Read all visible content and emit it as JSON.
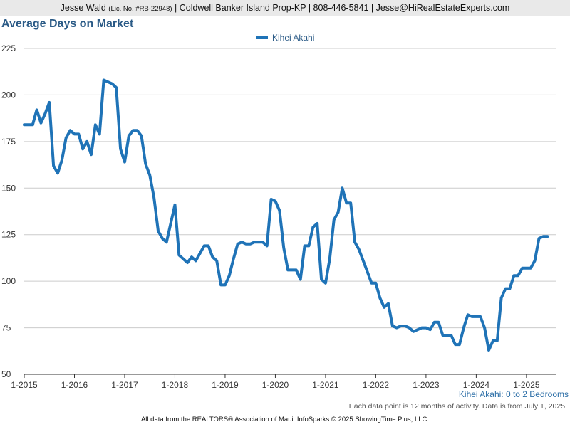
{
  "header": {
    "agent_name": "Jesse Wald",
    "license": "(Lic. No. #RB-22948)",
    "rest": "| Coldwell Banker Island Prop-KP | 808-446-5841 | Jesse@HiRealEstateExperts.com"
  },
  "notes": {
    "subtitle": "Kihei Akahi: 0 to 2 Bedrooms",
    "activity": "Each data point is 12 months of activity. Data is from July 1, 2025.",
    "footer": "All data from the REALTORS® Association of Maui. InfoSparks © 2025 ShowingTime Plus, LLC."
  },
  "colors": {
    "line": "#1f73b7",
    "grid": "#cccccc",
    "axis": "#333333",
    "title": "#2a5a86"
  },
  "chart_data": {
    "type": "line",
    "title": "Average Days on Market",
    "xlabel": "",
    "ylabel": "",
    "ylim": [
      50,
      225
    ],
    "yticks": [
      50,
      75,
      100,
      125,
      150,
      175,
      200,
      225
    ],
    "xlim": [
      2015.0,
      2025.5833
    ],
    "xticks": [
      {
        "label": "1-2015",
        "value": 2015
      },
      {
        "label": "1-2016",
        "value": 2016
      },
      {
        "label": "1-2017",
        "value": 2017
      },
      {
        "label": "1-2018",
        "value": 2018
      },
      {
        "label": "1-2019",
        "value": 2019
      },
      {
        "label": "1-2020",
        "value": 2020
      },
      {
        "label": "1-2021",
        "value": 2021
      },
      {
        "label": "1-2022",
        "value": 2022
      },
      {
        "label": "1-2023",
        "value": 2023
      },
      {
        "label": "1-2024",
        "value": 2024
      },
      {
        "label": "1-2025",
        "value": 2025
      }
    ],
    "grid": true,
    "legend_position": "top-center",
    "series": [
      {
        "name": "Kihei Akahi",
        "points": [
          [
            2015.0,
            184
          ],
          [
            2015.0833,
            184
          ],
          [
            2015.1667,
            184
          ],
          [
            2015.25,
            192
          ],
          [
            2015.3333,
            185
          ],
          [
            2015.4167,
            190
          ],
          [
            2015.5,
            196
          ],
          [
            2015.5833,
            162
          ],
          [
            2015.6667,
            158
          ],
          [
            2015.75,
            165
          ],
          [
            2015.8333,
            177
          ],
          [
            2015.9167,
            181
          ],
          [
            2016.0,
            179
          ],
          [
            2016.0833,
            179
          ],
          [
            2016.1667,
            171
          ],
          [
            2016.25,
            175
          ],
          [
            2016.3333,
            168
          ],
          [
            2016.4167,
            184
          ],
          [
            2016.5,
            179
          ],
          [
            2016.5833,
            208
          ],
          [
            2016.6667,
            207
          ],
          [
            2016.75,
            206
          ],
          [
            2016.8333,
            204
          ],
          [
            2016.9167,
            171
          ],
          [
            2017.0,
            164
          ],
          [
            2017.0833,
            178
          ],
          [
            2017.1667,
            181
          ],
          [
            2017.25,
            181
          ],
          [
            2017.3333,
            178
          ],
          [
            2017.4167,
            163
          ],
          [
            2017.5,
            157
          ],
          [
            2017.5833,
            145
          ],
          [
            2017.6667,
            127
          ],
          [
            2017.75,
            123
          ],
          [
            2017.8333,
            121
          ],
          [
            2017.9167,
            131
          ],
          [
            2018.0,
            141
          ],
          [
            2018.0833,
            114
          ],
          [
            2018.1667,
            112
          ],
          [
            2018.25,
            110
          ],
          [
            2018.3333,
            113
          ],
          [
            2018.4167,
            111
          ],
          [
            2018.5,
            115
          ],
          [
            2018.5833,
            119
          ],
          [
            2018.6667,
            119
          ],
          [
            2018.75,
            113
          ],
          [
            2018.8333,
            111
          ],
          [
            2018.9167,
            98
          ],
          [
            2019.0,
            98
          ],
          [
            2019.0833,
            103
          ],
          [
            2019.1667,
            112
          ],
          [
            2019.25,
            120
          ],
          [
            2019.3333,
            121
          ],
          [
            2019.4167,
            120
          ],
          [
            2019.5,
            120
          ],
          [
            2019.5833,
            121
          ],
          [
            2019.6667,
            121
          ],
          [
            2019.75,
            121
          ],
          [
            2019.8333,
            119
          ],
          [
            2019.9167,
            144
          ],
          [
            2020.0,
            143
          ],
          [
            2020.0833,
            138
          ],
          [
            2020.1667,
            118
          ],
          [
            2020.25,
            106
          ],
          [
            2020.3333,
            106
          ],
          [
            2020.4167,
            106
          ],
          [
            2020.5,
            101
          ],
          [
            2020.5833,
            119
          ],
          [
            2020.6667,
            119
          ],
          [
            2020.75,
            129
          ],
          [
            2020.8333,
            131
          ],
          [
            2020.9167,
            101
          ],
          [
            2021.0,
            99
          ],
          [
            2021.0833,
            112
          ],
          [
            2021.1667,
            133
          ],
          [
            2021.25,
            137
          ],
          [
            2021.3333,
            150
          ],
          [
            2021.4167,
            142
          ],
          [
            2021.5,
            142
          ],
          [
            2021.5833,
            121
          ],
          [
            2021.6667,
            117
          ],
          [
            2021.75,
            111
          ],
          [
            2021.8333,
            105
          ],
          [
            2021.9167,
            99
          ],
          [
            2022.0,
            99
          ],
          [
            2022.0833,
            91
          ],
          [
            2022.1667,
            86
          ],
          [
            2022.25,
            88
          ],
          [
            2022.3333,
            76
          ],
          [
            2022.4167,
            75
          ],
          [
            2022.5,
            76
          ],
          [
            2022.5833,
            76
          ],
          [
            2022.6667,
            75
          ],
          [
            2022.75,
            73
          ],
          [
            2022.8333,
            74
          ],
          [
            2022.9167,
            75
          ],
          [
            2023.0,
            75
          ],
          [
            2023.0833,
            74
          ],
          [
            2023.1667,
            78
          ],
          [
            2023.25,
            78
          ],
          [
            2023.3333,
            71
          ],
          [
            2023.4167,
            71
          ],
          [
            2023.5,
            71
          ],
          [
            2023.5833,
            66
          ],
          [
            2023.6667,
            66
          ],
          [
            2023.75,
            75
          ],
          [
            2023.8333,
            82
          ],
          [
            2023.9167,
            81
          ],
          [
            2024.0,
            81
          ],
          [
            2024.0833,
            81
          ],
          [
            2024.1667,
            75
          ],
          [
            2024.25,
            63
          ],
          [
            2024.3333,
            68
          ],
          [
            2024.4167,
            68
          ],
          [
            2024.5,
            91
          ],
          [
            2024.5833,
            96
          ],
          [
            2024.6667,
            96
          ],
          [
            2024.75,
            103
          ],
          [
            2024.8333,
            103
          ],
          [
            2024.9167,
            107
          ],
          [
            2025.0,
            107
          ],
          [
            2025.0833,
            107
          ],
          [
            2025.1667,
            111
          ],
          [
            2025.25,
            123
          ],
          [
            2025.3333,
            124
          ],
          [
            2025.4167,
            124
          ]
        ]
      }
    ]
  }
}
